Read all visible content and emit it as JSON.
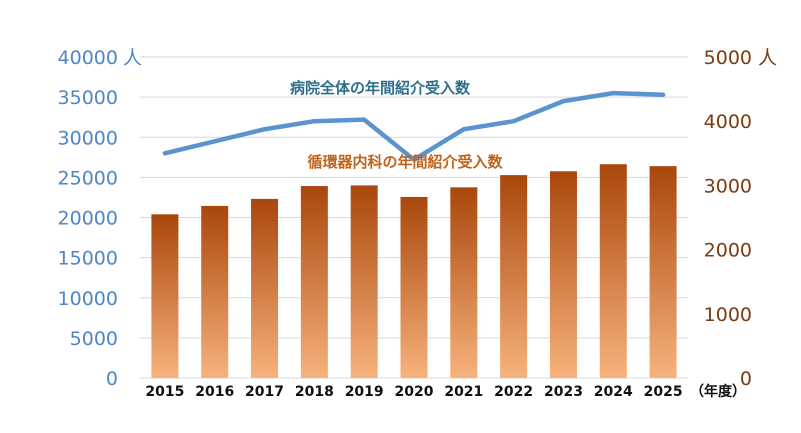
{
  "chart_data": {
    "type": "bar+line",
    "categories": [
      "2015",
      "2016",
      "2017",
      "2018",
      "2019",
      "2020",
      "2021",
      "2022",
      "2023",
      "2024",
      "2025"
    ],
    "x_unit": "（年度）",
    "left_axis": {
      "ylim": [
        0,
        40000
      ],
      "ticks": [
        "0",
        "5000",
        "10000",
        "15000",
        "20000",
        "25000",
        "30000",
        "35000",
        "40000"
      ],
      "unit": "人",
      "color": "#4f86c6"
    },
    "right_axis": {
      "ylim": [
        0,
        5000
      ],
      "ticks": [
        "0",
        "1000",
        "2000",
        "3000",
        "4000",
        "5000"
      ],
      "unit": "人",
      "color": "#7a3c12"
    },
    "series": [
      {
        "name": "病院全体の年間紹介受入数",
        "type": "line",
        "axis": "left",
        "color": "#5b93cf",
        "values": [
          28000,
          29500,
          31000,
          32000,
          32200,
          27200,
          31000,
          32000,
          34500,
          35500,
          35300
        ]
      },
      {
        "name": "循環器内科の年間紹介受入数",
        "type": "bar",
        "axis": "right",
        "color_top": "#a9470c",
        "color_bottom": "#f7b27c",
        "label_color": "#c0631a",
        "values": [
          2550,
          2680,
          2790,
          2990,
          3000,
          2820,
          2970,
          3160,
          3220,
          3330,
          3300
        ]
      }
    ],
    "grid": "horizontal"
  }
}
